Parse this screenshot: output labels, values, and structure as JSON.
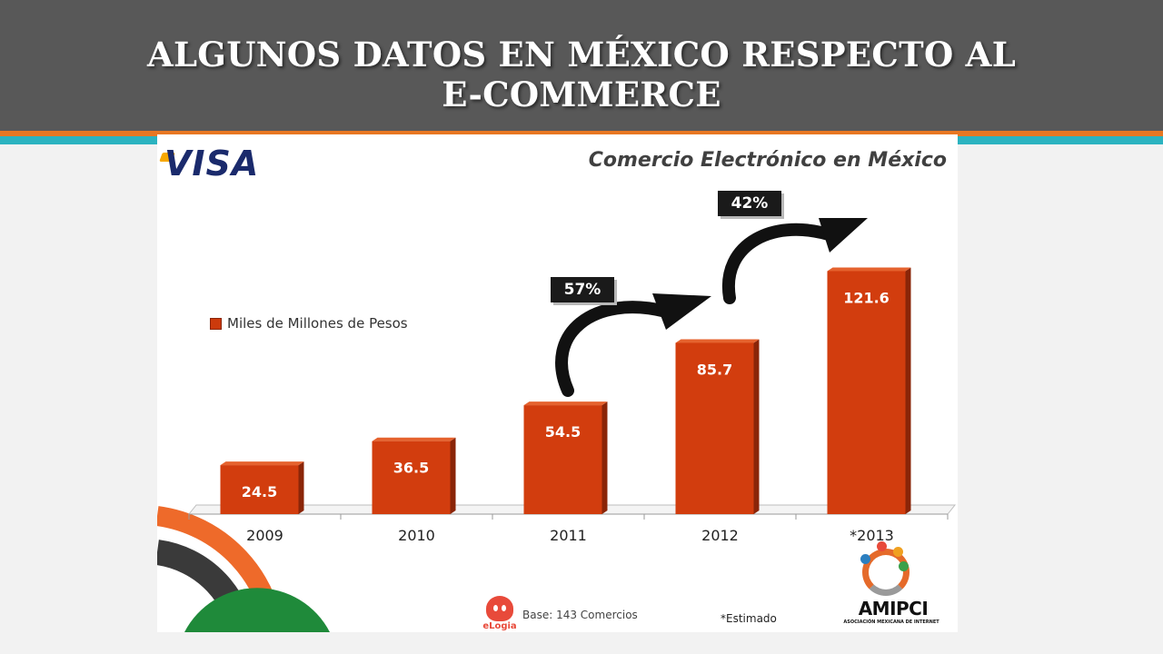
{
  "header": {
    "title_line1": "ALGUNOS DATOS EN MÉXICO RESPECTO AL",
    "title_line2": "E-COMMERCE"
  },
  "slide": {
    "brand_logo": "VISA",
    "source_note": "Base: 143 Comercios",
    "estimate_note": "*Estimado",
    "partner_logo_left": "eLogia",
    "partner_logo_right": "AMIPCI",
    "partner_logo_right_sub": "ASOCIACIÓN MEXICANA DE INTERNET"
  },
  "colors": {
    "header_bg": "#585858",
    "stripe_orange": "#e87722",
    "stripe_teal": "#2bb3c0",
    "bar_front": "#d23d0e",
    "bar_side": "#8a2508",
    "bar_top": "#e5622e",
    "badge_bg": "#1a1a1a"
  },
  "chart_data": {
    "type": "bar",
    "title": "Comercio Electrónico en México",
    "categories": [
      "2009",
      "2010",
      "2011",
      "2012",
      "*2013"
    ],
    "series": [
      {
        "name": "Miles de Millones de Pesos",
        "values": [
          24.5,
          36.5,
          54.5,
          85.7,
          121.6
        ]
      }
    ],
    "data_labels": [
      "24.5",
      "36.5",
      "54.5",
      "85.7",
      "121.6"
    ],
    "annotations": [
      {
        "text": "57%",
        "from": "2011",
        "to": "2012"
      },
      {
        "text": "42%",
        "from": "2012",
        "to": "*2013"
      }
    ],
    "legend_position": "left",
    "grid": false,
    "ylim": [
      0,
      130
    ]
  }
}
